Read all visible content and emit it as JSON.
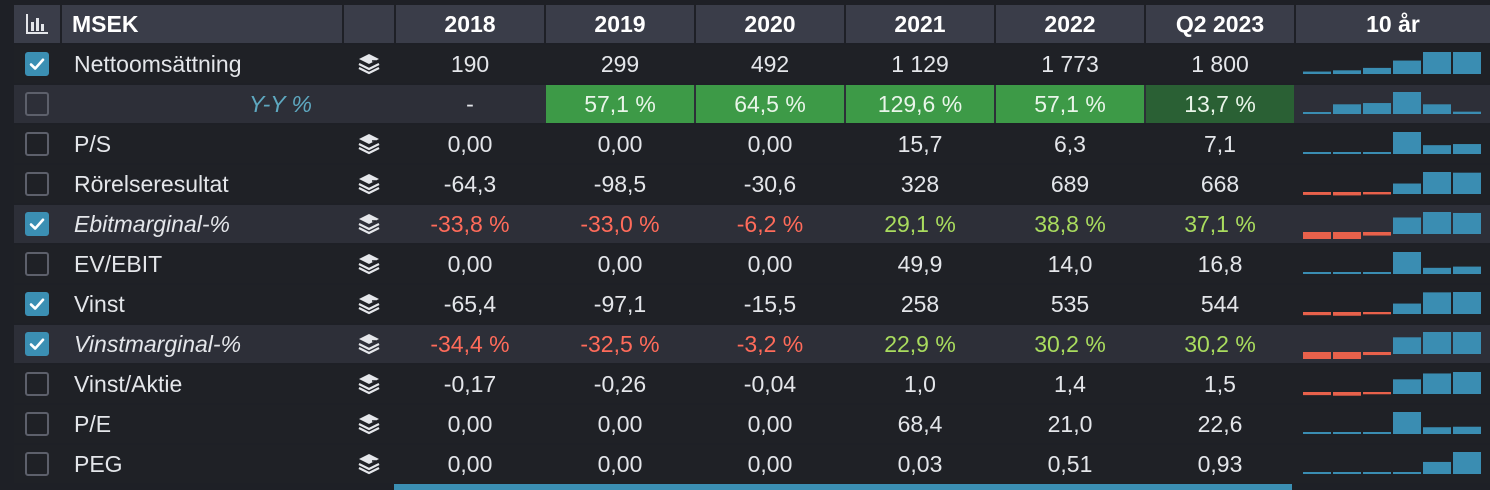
{
  "header": {
    "icon": "bar-chart-icon",
    "currency": "MSEK",
    "years": [
      "2018",
      "2019",
      "2020",
      "2021",
      "2022",
      "Q2 2023"
    ],
    "spark_label": "10 år"
  },
  "colors": {
    "spark_pos": "#3a8db2",
    "spark_neg": "#e8614b",
    "check": "#3b8fb3",
    "neg_text": "#ff6b5a",
    "pos_text": "#a9dc5e",
    "hl_green": "#3d9a47",
    "hl_dark_green": "#2a6034"
  },
  "rows": [
    {
      "label": "Nettoomsättning",
      "checked": true,
      "italic": false,
      "stack_icon": true,
      "values": [
        "190",
        "299",
        "492",
        "1 129",
        "1 773",
        "1 800"
      ],
      "spark": [
        2,
        3,
        5,
        11,
        18,
        18
      ]
    },
    {
      "label": "Y-Y %",
      "checked": false,
      "italic": true,
      "stack_icon": false,
      "yy": true,
      "values": [
        "-",
        "57,1 %",
        "64,5 %",
        "129,6 %",
        "57,1 %",
        "13,7 %"
      ],
      "highlight": [
        "",
        "hl",
        "hl",
        "hl",
        "hl",
        "hl2"
      ],
      "spark": [
        0,
        57.1,
        64.5,
        129.6,
        57.1,
        13.7
      ]
    },
    {
      "label": "P/S",
      "checked": false,
      "italic": false,
      "stack_icon": true,
      "values": [
        "0,00",
        "0,00",
        "0,00",
        "15,7",
        "6,3",
        "7,1"
      ],
      "spark": [
        0,
        0,
        0,
        15.7,
        6.3,
        7.1
      ]
    },
    {
      "label": "Rörelseresultat",
      "checked": false,
      "italic": false,
      "stack_icon": true,
      "values": [
        "-64,3",
        "-98,5",
        "-30,6",
        "328",
        "689",
        "668"
      ],
      "spark": [
        -64.3,
        -98.5,
        -30.6,
        328,
        689,
        668
      ]
    },
    {
      "label": "Ebitmarginal-%",
      "checked": true,
      "italic": true,
      "stack_icon": true,
      "values": [
        "-33,8 %",
        "-33,0 %",
        "-6,2 %",
        "29,1 %",
        "38,8 %",
        "37,1 %"
      ],
      "color_values": true,
      "spark": [
        -33.8,
        -33.0,
        -6.2,
        29.1,
        38.8,
        37.1
      ]
    },
    {
      "label": "EV/EBIT",
      "checked": false,
      "italic": false,
      "stack_icon": true,
      "values": [
        "0,00",
        "0,00",
        "0,00",
        "49,9",
        "14,0",
        "16,8"
      ],
      "spark": [
        0,
        0,
        0,
        49.9,
        14.0,
        16.8
      ]
    },
    {
      "label": "Vinst",
      "checked": true,
      "italic": false,
      "stack_icon": true,
      "values": [
        "-65,4",
        "-97,1",
        "-15,5",
        "258",
        "535",
        "544"
      ],
      "spark": [
        -65.4,
        -97.1,
        -15.5,
        258,
        535,
        544
      ]
    },
    {
      "label": "Vinstmarginal-%",
      "checked": true,
      "italic": true,
      "stack_icon": true,
      "values": [
        "-34,4 %",
        "-32,5 %",
        "-3,2 %",
        "22,9 %",
        "30,2 %",
        "30,2 %"
      ],
      "color_values": true,
      "spark": [
        -34.4,
        -32.5,
        -3.2,
        22.9,
        30.2,
        30.2
      ]
    },
    {
      "label": "Vinst/Aktie",
      "checked": false,
      "italic": false,
      "stack_icon": true,
      "values": [
        "-0,17",
        "-0,26",
        "-0,04",
        "1,0",
        "1,4",
        "1,5"
      ],
      "spark": [
        -0.17,
        -0.26,
        -0.04,
        1.0,
        1.4,
        1.5
      ]
    },
    {
      "label": "P/E",
      "checked": false,
      "italic": false,
      "stack_icon": true,
      "values": [
        "0,00",
        "0,00",
        "0,00",
        "68,4",
        "21,0",
        "22,6"
      ],
      "spark": [
        0,
        0,
        0,
        68.4,
        21.0,
        22.6
      ]
    },
    {
      "label": "PEG",
      "checked": false,
      "italic": false,
      "stack_icon": true,
      "values": [
        "0,00",
        "0,00",
        "0,00",
        "0,03",
        "0,51",
        "0,93"
      ],
      "spark": [
        0,
        0,
        0,
        0.03,
        0.51,
        0.93
      ]
    }
  ]
}
